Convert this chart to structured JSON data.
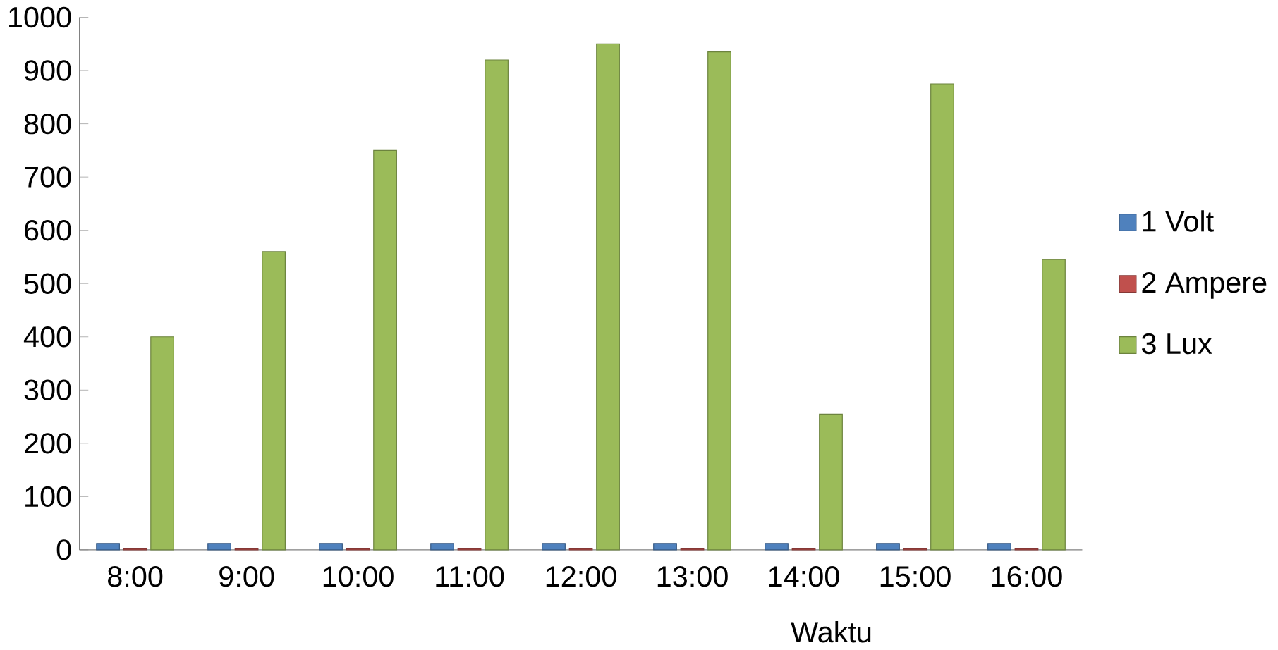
{
  "chart_data": {
    "type": "bar",
    "xlabel": "Waktu",
    "categories": [
      "8:00",
      "9:00",
      "10:00",
      "11:00",
      "12:00",
      "13:00",
      "14:00",
      "15:00",
      "16:00"
    ],
    "series": [
      {
        "name": "1 Volt",
        "color": "#4f81bd",
        "values": [
          12,
          12,
          12,
          12,
          12,
          12,
          12,
          12,
          12
        ]
      },
      {
        "name": "2 Ampere",
        "color": "#c0504d",
        "values": [
          2,
          2,
          2,
          2,
          2,
          2,
          2,
          2,
          2
        ]
      },
      {
        "name": "3 Lux",
        "color": "#9bbb59",
        "values": [
          400,
          560,
          750,
          920,
          950,
          935,
          255,
          875,
          545
        ]
      }
    ],
    "ylim": [
      0,
      1000
    ],
    "yticks": [
      0,
      100,
      200,
      300,
      400,
      500,
      600,
      700,
      800,
      900,
      1000
    ],
    "grid": false,
    "legend": "right"
  }
}
